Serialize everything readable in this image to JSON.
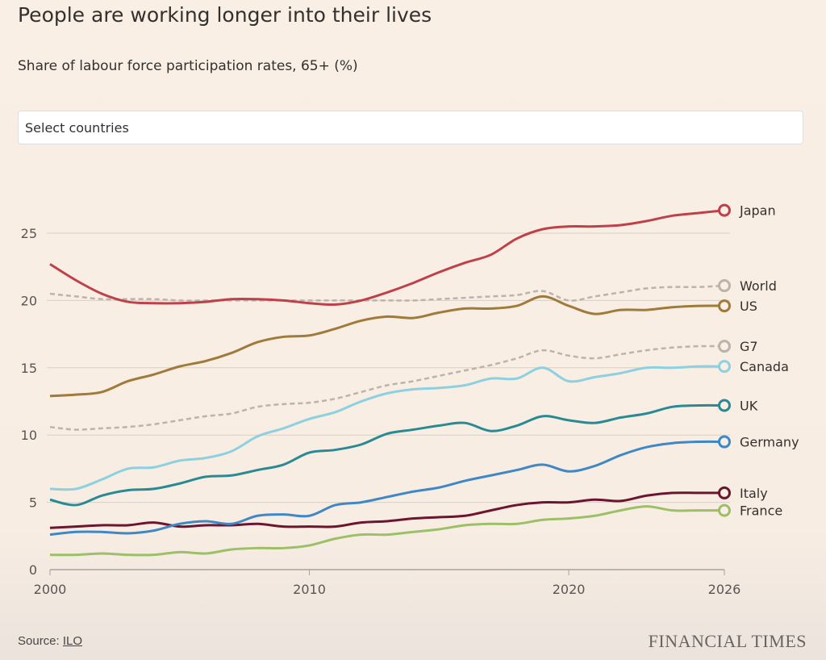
{
  "chart_data": {
    "type": "line",
    "title": "People are working longer into their lives",
    "subtitle": "Share of labour force participation rates, 65+ (%)",
    "xlabel": "",
    "ylabel": "",
    "xlim": [
      2000,
      2026
    ],
    "ylim": [
      0,
      27
    ],
    "x_ticks": [
      "2000",
      "2010",
      "2020",
      "2026"
    ],
    "y_ticks": [
      "0",
      "5",
      "10",
      "15",
      "20",
      "25"
    ],
    "grid": "horizontal",
    "legend": "right, labels at line ends",
    "x": [
      2000,
      2001,
      2002,
      2003,
      2004,
      2005,
      2006,
      2007,
      2008,
      2009,
      2010,
      2011,
      2012,
      2013,
      2014,
      2015,
      2016,
      2017,
      2018,
      2019,
      2020,
      2021,
      2022,
      2023,
      2024,
      2025,
      2026
    ],
    "series": [
      {
        "name": "Japan",
        "color": "#c0404a",
        "dashed": false,
        "values": [
          22.7,
          21.5,
          20.5,
          19.9,
          19.8,
          19.8,
          19.9,
          20.1,
          20.1,
          20.0,
          19.8,
          19.7,
          20.0,
          20.6,
          21.3,
          22.1,
          22.8,
          23.4,
          24.6,
          25.3,
          25.5,
          25.5,
          25.6,
          25.9,
          26.3,
          26.5,
          26.7
        ]
      },
      {
        "name": "World",
        "color": "#bcb3ad",
        "dashed": true,
        "values": [
          20.5,
          20.3,
          20.1,
          20.1,
          20.1,
          20.0,
          20.0,
          20.0,
          20.0,
          20.0,
          20.0,
          20.0,
          20.0,
          20.0,
          20.0,
          20.1,
          20.2,
          20.3,
          20.4,
          20.7,
          20.0,
          20.3,
          20.6,
          20.9,
          21.0,
          21.0,
          21.1
        ]
      },
      {
        "name": "US",
        "color": "#a07a3a",
        "dashed": false,
        "values": [
          12.9,
          13.0,
          13.2,
          14.0,
          14.5,
          15.1,
          15.5,
          16.1,
          16.9,
          17.3,
          17.4,
          17.9,
          18.5,
          18.8,
          18.7,
          19.1,
          19.4,
          19.4,
          19.6,
          20.3,
          19.6,
          19.0,
          19.3,
          19.3,
          19.5,
          19.6,
          19.6
        ]
      },
      {
        "name": "G7",
        "color": "#bcb3ad",
        "dashed": true,
        "values": [
          10.6,
          10.4,
          10.5,
          10.6,
          10.8,
          11.1,
          11.4,
          11.6,
          12.1,
          12.3,
          12.4,
          12.7,
          13.2,
          13.7,
          14.0,
          14.4,
          14.8,
          15.2,
          15.7,
          16.3,
          15.9,
          15.7,
          16.0,
          16.3,
          16.5,
          16.6,
          16.6
        ]
      },
      {
        "name": "Canada",
        "color": "#8dd0e0",
        "dashed": false,
        "values": [
          6.0,
          6.0,
          6.7,
          7.5,
          7.6,
          8.1,
          8.3,
          8.8,
          9.9,
          10.5,
          11.2,
          11.7,
          12.5,
          13.1,
          13.4,
          13.5,
          13.7,
          14.2,
          14.2,
          15.0,
          14.0,
          14.3,
          14.6,
          15.0,
          15.0,
          15.1,
          15.1
        ]
      },
      {
        "name": "UK",
        "color": "#2a8a94",
        "dashed": false,
        "values": [
          5.2,
          4.8,
          5.5,
          5.9,
          6.0,
          6.4,
          6.9,
          7.0,
          7.4,
          7.8,
          8.7,
          8.9,
          9.3,
          10.1,
          10.4,
          10.7,
          10.9,
          10.3,
          10.7,
          11.4,
          11.1,
          10.9,
          11.3,
          11.6,
          12.1,
          12.2,
          12.2
        ]
      },
      {
        "name": "Germany",
        "color": "#3f88c5",
        "dashed": false,
        "values": [
          2.6,
          2.8,
          2.8,
          2.7,
          2.9,
          3.4,
          3.6,
          3.4,
          4.0,
          4.1,
          4.0,
          4.8,
          5.0,
          5.4,
          5.8,
          6.1,
          6.6,
          7.0,
          7.4,
          7.8,
          7.3,
          7.7,
          8.5,
          9.1,
          9.4,
          9.5,
          9.5
        ]
      },
      {
        "name": "Italy",
        "color": "#6b1530",
        "dashed": false,
        "values": [
          3.1,
          3.2,
          3.3,
          3.3,
          3.5,
          3.2,
          3.3,
          3.3,
          3.4,
          3.2,
          3.2,
          3.2,
          3.5,
          3.6,
          3.8,
          3.9,
          4.0,
          4.4,
          4.8,
          5.0,
          5.0,
          5.2,
          5.1,
          5.5,
          5.7,
          5.7,
          5.7
        ]
      },
      {
        "name": "France",
        "color": "#9cc067",
        "dashed": false,
        "values": [
          1.1,
          1.1,
          1.2,
          1.1,
          1.1,
          1.3,
          1.2,
          1.5,
          1.6,
          1.6,
          1.8,
          2.3,
          2.6,
          2.6,
          2.8,
          3.0,
          3.3,
          3.4,
          3.4,
          3.7,
          3.8,
          4.0,
          4.4,
          4.7,
          4.4,
          4.4,
          4.4
        ]
      }
    ]
  },
  "controls": {
    "select_placeholder": "Select countries"
  },
  "footer": {
    "source_label": "Source: ",
    "source_link": "ILO",
    "brand": "FINANCIAL TIMES"
  }
}
